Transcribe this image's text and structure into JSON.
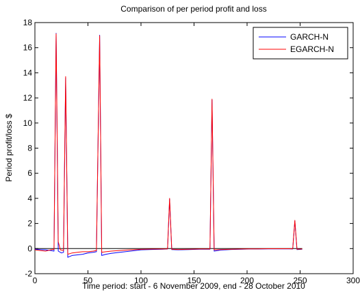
{
  "chart_data": {
    "type": "line",
    "title": "Comparison of per period profit and loss",
    "xlabel": "Time period: start - 6 November 2009, end - 28 October 2010",
    "ylabel": "Period profit/loss $",
    "xlim": [
      0,
      300
    ],
    "ylim": [
      -2,
      18
    ],
    "xticks": [
      0,
      50,
      100,
      150,
      200,
      250,
      300
    ],
    "yticks": [
      -2,
      0,
      2,
      4,
      6,
      8,
      10,
      12,
      14,
      16,
      18
    ],
    "grid": false,
    "legend_position": "top-right",
    "reference_line": {
      "y": 0,
      "color": "#000000"
    },
    "series": [
      {
        "name": "GARCH-N",
        "color": "#0000ff",
        "points": [
          [
            0,
            -0.05
          ],
          [
            5,
            -0.08
          ],
          [
            10,
            -0.1
          ],
          [
            15,
            -0.15
          ],
          [
            18,
            -0.2
          ],
          [
            20,
            17.15
          ],
          [
            22,
            -0.2
          ],
          [
            25,
            -0.35
          ],
          [
            27,
            -0.3
          ],
          [
            29,
            13.6
          ],
          [
            31,
            -0.7
          ],
          [
            35,
            -0.55
          ],
          [
            40,
            -0.5
          ],
          [
            45,
            -0.45
          ],
          [
            50,
            -0.35
          ],
          [
            55,
            -0.3
          ],
          [
            58,
            -0.25
          ],
          [
            61,
            17.0
          ],
          [
            63,
            -0.55
          ],
          [
            67,
            -0.45
          ],
          [
            72,
            -0.38
          ],
          [
            80,
            -0.3
          ],
          [
            90,
            -0.2
          ],
          [
            100,
            -0.1
          ],
          [
            110,
            -0.07
          ],
          [
            120,
            -0.05
          ],
          [
            125,
            -0.03
          ],
          [
            127,
            3.95
          ],
          [
            129,
            -0.08
          ],
          [
            135,
            -0.1
          ],
          [
            145,
            -0.08
          ],
          [
            155,
            -0.05
          ],
          [
            165,
            -0.05
          ],
          [
            167,
            11.85
          ],
          [
            169,
            -0.2
          ],
          [
            175,
            -0.12
          ],
          [
            185,
            -0.07
          ],
          [
            195,
            -0.05
          ],
          [
            202,
            -0.03
          ],
          [
            210,
            -0.03
          ],
          [
            220,
            -0.02
          ],
          [
            230,
            -0.02
          ],
          [
            240,
            -0.02
          ],
          [
            243,
            -0.03
          ],
          [
            245,
            2.2
          ],
          [
            247,
            -0.08
          ],
          [
            252,
            -0.05
          ]
        ]
      },
      {
        "name": "EGARCH-N",
        "color": "#ff0000",
        "points": [
          [
            0,
            -0.1
          ],
          [
            5,
            -0.15
          ],
          [
            10,
            -0.2
          ],
          [
            15,
            -0.1
          ],
          [
            18,
            -0.05
          ],
          [
            20,
            17.1
          ],
          [
            22,
            0.55
          ],
          [
            24,
            -0.1
          ],
          [
            27,
            -0.15
          ],
          [
            29,
            13.7
          ],
          [
            31,
            -0.45
          ],
          [
            35,
            -0.35
          ],
          [
            40,
            -0.3
          ],
          [
            45,
            -0.25
          ],
          [
            50,
            -0.25
          ],
          [
            55,
            -0.2
          ],
          [
            58,
            -0.15
          ],
          [
            61,
            16.95
          ],
          [
            63,
            -0.3
          ],
          [
            67,
            -0.25
          ],
          [
            72,
            -0.2
          ],
          [
            80,
            -0.15
          ],
          [
            90,
            -0.1
          ],
          [
            100,
            -0.06
          ],
          [
            110,
            -0.04
          ],
          [
            120,
            -0.03
          ],
          [
            125,
            -0.02
          ],
          [
            127,
            4.0
          ],
          [
            129,
            -0.05
          ],
          [
            135,
            -0.07
          ],
          [
            145,
            -0.05
          ],
          [
            155,
            -0.03
          ],
          [
            165,
            -0.03
          ],
          [
            167,
            11.9
          ],
          [
            169,
            -0.1
          ],
          [
            175,
            -0.08
          ],
          [
            185,
            -0.05
          ],
          [
            195,
            -0.03
          ],
          [
            202,
            -0.02
          ],
          [
            210,
            -0.02
          ],
          [
            220,
            -0.01
          ],
          [
            230,
            -0.01
          ],
          [
            240,
            -0.01
          ],
          [
            243,
            -0.02
          ],
          [
            245,
            2.25
          ],
          [
            247,
            -0.05
          ],
          [
            252,
            -0.03
          ]
        ]
      }
    ]
  }
}
